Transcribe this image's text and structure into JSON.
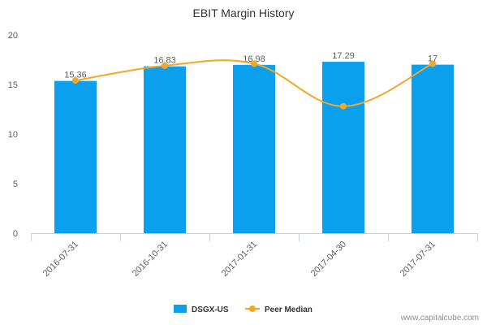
{
  "chart_data": {
    "type": "bar",
    "title": "EBIT Margin History",
    "categories": [
      "2016-07-31",
      "2016-10-31",
      "2017-01-31",
      "2017-04-30",
      "2017-07-31"
    ],
    "series": [
      {
        "name": "DSGX-US",
        "kind": "bar",
        "color": "#0aa0ee",
        "values": [
          15.36,
          16.83,
          16.98,
          17.29,
          17
        ],
        "data_labels": [
          "15.36",
          "16.83",
          "16.98",
          "17.29",
          "17"
        ]
      },
      {
        "name": "Peer Median",
        "kind": "line",
        "color": "#f5a623",
        "values": [
          15.4,
          16.9,
          17.1,
          12.8,
          17.1
        ]
      }
    ],
    "ylim": [
      0,
      20
    ],
    "yticks": [
      "0",
      "5",
      "10",
      "15",
      "20"
    ],
    "grid": false,
    "legend_position": "bottom-center"
  },
  "credit": "www.capitalcube.com"
}
